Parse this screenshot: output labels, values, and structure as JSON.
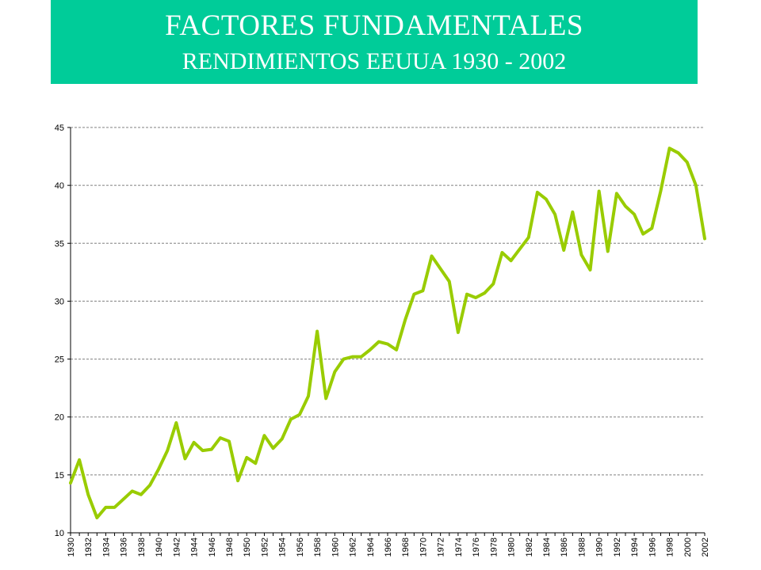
{
  "header": {
    "title": "FACTORES FUNDAMENTALES",
    "subtitle": "RENDIMIENTOS EEUUA 1930 - 2002"
  },
  "colors": {
    "banner": "#00cc99",
    "title_text": "#ffffff",
    "line": "#99cc00",
    "gridline": "#808080",
    "axis": "#000000"
  },
  "chart_data": {
    "type": "line",
    "title": "",
    "xlabel": "",
    "ylabel": "",
    "ylim": [
      10,
      45
    ],
    "yticks": [
      10,
      15,
      20,
      25,
      30,
      35,
      40,
      45
    ],
    "xlim": [
      1930,
      2002
    ],
    "xtick_labels": [
      "1930",
      "1932",
      "1934",
      "1936",
      "1938",
      "1940",
      "1942",
      "1944",
      "1946",
      "1948",
      "1950",
      "1952",
      "1954",
      "1956",
      "1958",
      "1960",
      "1962",
      "1964",
      "1966",
      "1968",
      "1970",
      "1972",
      "1974",
      "1976",
      "1978",
      "1980",
      "1982",
      "1984",
      "1986",
      "1988",
      "1990",
      "1992",
      "1994",
      "1996",
      "1998",
      "2000",
      "2002"
    ],
    "grid": "horizontal dashed",
    "legend": "none",
    "x": [
      1930,
      1931,
      1932,
      1933,
      1934,
      1935,
      1936,
      1937,
      1938,
      1939,
      1940,
      1941,
      1942,
      1943,
      1944,
      1945,
      1946,
      1947,
      1948,
      1949,
      1950,
      1951,
      1952,
      1953,
      1954,
      1955,
      1956,
      1957,
      1958,
      1959,
      1960,
      1961,
      1962,
      1963,
      1964,
      1965,
      1966,
      1967,
      1968,
      1969,
      1970,
      1971,
      1972,
      1973,
      1974,
      1975,
      1976,
      1977,
      1978,
      1979,
      1980,
      1981,
      1982,
      1983,
      1984,
      1985,
      1986,
      1987,
      1988,
      1989,
      1990,
      1991,
      1992,
      1993,
      1994,
      1995,
      1996,
      1997,
      1998,
      1999,
      2000,
      2001,
      2002
    ],
    "values": [
      14.3,
      16.3,
      13.3,
      11.3,
      12.2,
      12.2,
      12.9,
      13.6,
      13.3,
      14.1,
      15.5,
      17.1,
      19.5,
      16.4,
      17.8,
      17.1,
      17.2,
      18.2,
      17.9,
      14.5,
      16.5,
      16.0,
      18.4,
      17.3,
      18.1,
      19.8,
      20.2,
      21.8,
      27.4,
      21.6,
      23.9,
      25.0,
      25.2,
      25.2,
      25.8,
      26.5,
      26.3,
      25.8,
      28.4,
      30.6,
      30.9,
      33.9,
      32.8,
      31.7,
      27.3,
      30.6,
      30.3,
      30.7,
      31.5,
      34.2,
      33.5,
      34.5,
      35.5,
      39.4,
      38.8,
      37.5,
      34.4,
      37.7,
      34.0,
      32.7,
      39.5,
      34.3,
      39.3,
      38.2,
      37.5,
      35.8,
      36.3,
      39.5,
      43.2,
      42.8,
      42.0,
      40.0,
      35.4
    ]
  }
}
